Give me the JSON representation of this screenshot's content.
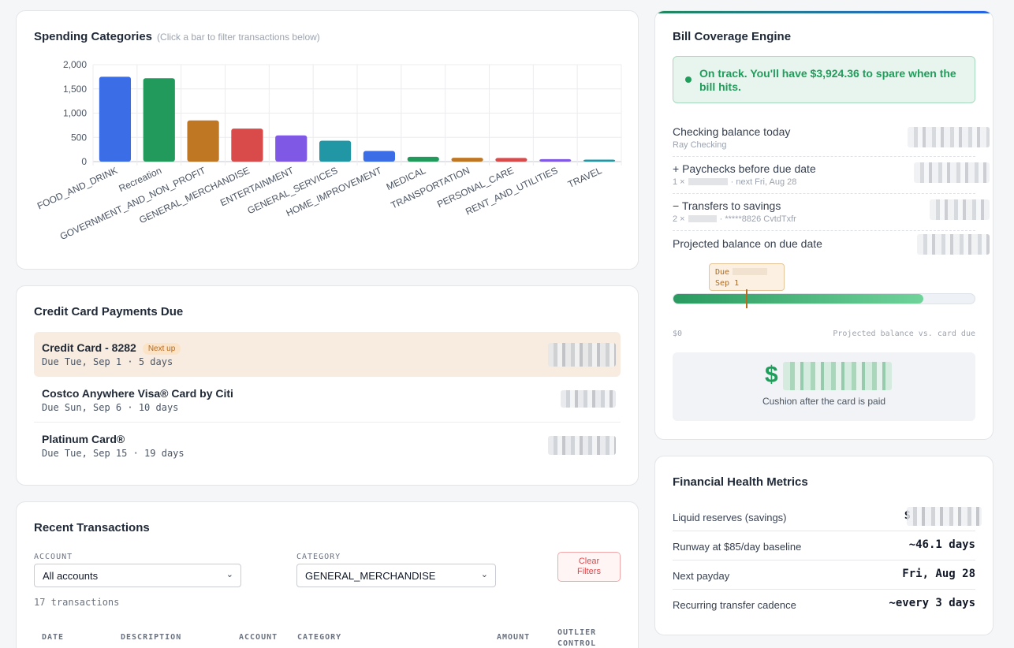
{
  "spending": {
    "title": "Spending Categories",
    "hint": "(Click a bar to filter transactions below)"
  },
  "chart_data": {
    "type": "bar",
    "categories": [
      "FOOD_AND_DRINK",
      "Recreation",
      "GOVERNMENT_AND_NON_PROFIT",
      "GENERAL_MERCHANDISE",
      "ENTERTAINMENT",
      "GENERAL_SERVICES",
      "HOME_IMPROVEMENT",
      "MEDICAL",
      "TRANSPORTATION",
      "PERSONAL_CARE",
      "RENT_AND_UTILITIES",
      "TRAVEL"
    ],
    "values": [
      1750,
      1720,
      850,
      680,
      540,
      430,
      220,
      100,
      80,
      75,
      50,
      40
    ],
    "colors": [
      "#3b6ee6",
      "#219a5c",
      "#c07724",
      "#d94a4a",
      "#7f58e6",
      "#2196a4",
      "#3b6ee6",
      "#219a5c",
      "#c07724",
      "#d94a4a",
      "#7f58e6",
      "#2196a4"
    ],
    "yticks": [
      "0",
      "500",
      "1,000",
      "1,500",
      "2,000"
    ],
    "ylim": [
      0,
      2000
    ],
    "grid": true
  },
  "credit_cards": {
    "title": "Credit Card Payments Due",
    "items": [
      {
        "name": "Credit Card - 8282",
        "badge": "Next up",
        "due": "Due Tue, Sep 1 · 5 days"
      },
      {
        "name": "Costco Anywhere Visa® Card by Citi",
        "due": "Due Sun, Sep 6 · 10 days"
      },
      {
        "name": "Platinum Card®",
        "due": "Due Tue, Sep 15 · 19 days"
      }
    ]
  },
  "transactions": {
    "title": "Recent Transactions",
    "account_label": "ACCOUNT",
    "account_value": "All accounts",
    "category_label": "CATEGORY",
    "category_value": "GENERAL_MERCHANDISE",
    "clear_line1": "Clear",
    "clear_line2": "Filters",
    "count": "17 transactions",
    "headers": [
      "DATE",
      "DESCRIPTION",
      "ACCOUNT",
      "CATEGORY",
      "AMOUNT",
      "OUTLIER",
      "CONTROL"
    ]
  },
  "bill": {
    "title": "Bill Coverage Engine",
    "status": "On track. You'll have $3,924.36 to spare when the bill hits.",
    "rows": [
      {
        "label": "Checking balance today",
        "sub": "Ray Checking"
      },
      {
        "label": "+ Paychecks before due date",
        "sub_prefix": "1 ×",
        "sub": "· next Fri, Aug 28"
      },
      {
        "label": "− Transfers to savings",
        "sub_prefix": "2 ×",
        "sub": "· *****8826 CvtdTxfr"
      },
      {
        "label": "Projected balance on due date"
      }
    ],
    "due_line1": "Due",
    "due_line2": "Sep 1",
    "progress_fraction": 0.83,
    "axis_left": "$0",
    "axis_right": "Projected balance vs. card due",
    "cushion_prefix": "$",
    "cushion_caption": "Cushion after the card is paid"
  },
  "metrics": {
    "title": "Financial Health Metrics",
    "rows": [
      {
        "label": "Liquid reserves (savings)",
        "value": "$"
      },
      {
        "label": "Runway at $85/day baseline",
        "value": "~46.1 days"
      },
      {
        "label": "Next payday",
        "value": "Fri, Aug 28"
      },
      {
        "label": "Recurring transfer cadence",
        "value": "~every 3 days"
      }
    ]
  }
}
